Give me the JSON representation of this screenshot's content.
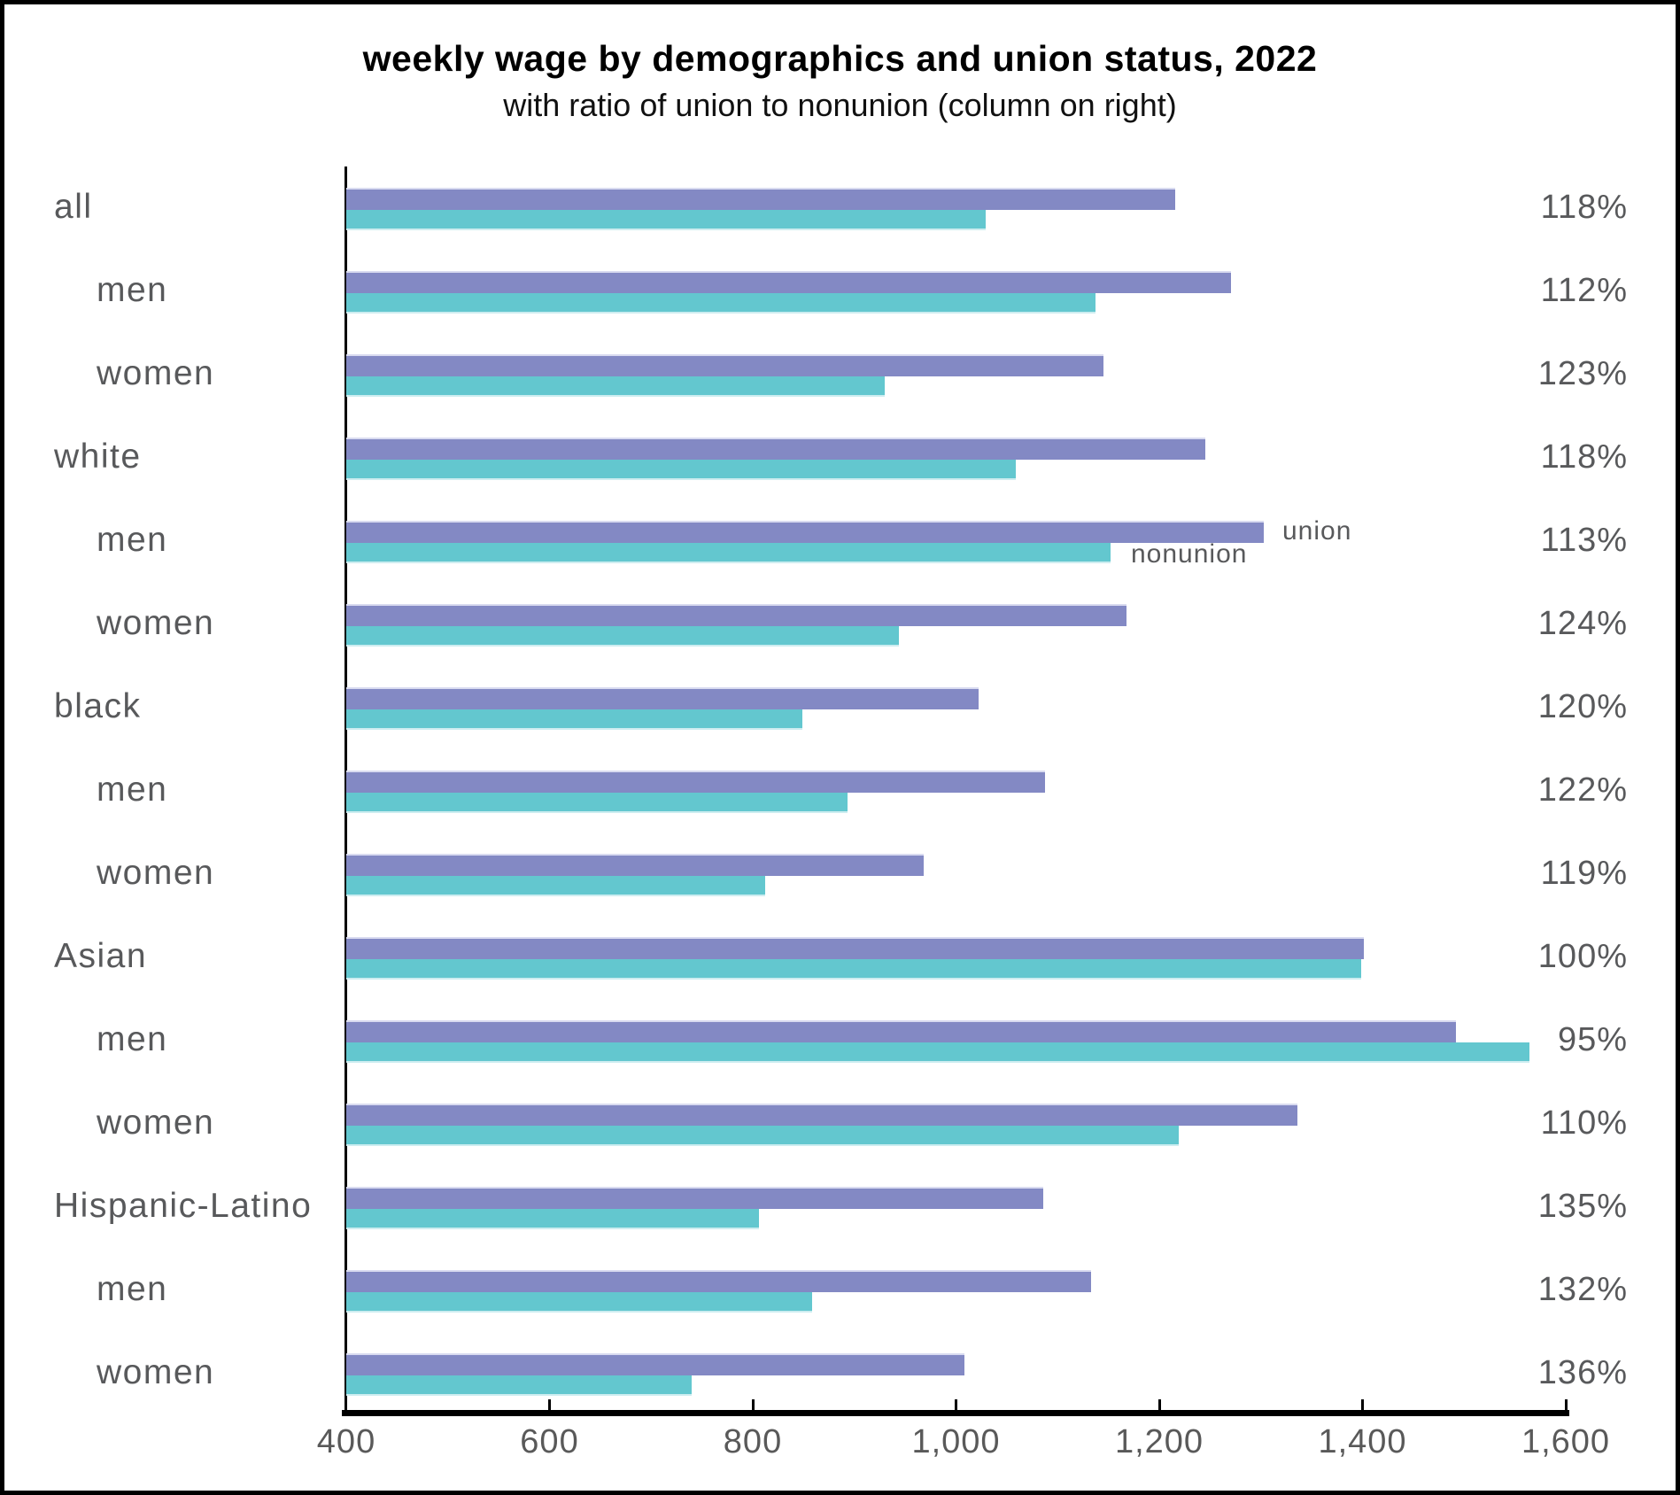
{
  "title": "weekly wage by demographics and union status, 2022",
  "subtitle": "with ratio of union to nonunion (column on right)",
  "legend": {
    "union_label": "union",
    "nonunion_label": "nonunion"
  },
  "colors": {
    "union": "#8389c4",
    "nonunion": "#63c7cf",
    "union_edge": "#d9dbf0",
    "nonunion_edge": "#cdedf0",
    "label_gray": "#58595b",
    "axis_black": "#000000"
  },
  "chart_data": {
    "type": "bar",
    "orientation": "horizontal",
    "title": "weekly wage by demographics and union status, 2022",
    "subtitle": "with ratio of union to nonunion (column on right)",
    "xlabel": "",
    "ylabel": "",
    "xlim": [
      400,
      1600
    ],
    "grid": false,
    "x_ticks": [
      {
        "value": 400,
        "label": "400"
      },
      {
        "value": 600,
        "label": "600"
      },
      {
        "value": 800,
        "label": "800"
      },
      {
        "value": 1000,
        "label": "1,000"
      },
      {
        "value": 1200,
        "label": "1,200"
      },
      {
        "value": 1400,
        "label": "1,400"
      },
      {
        "value": 1600,
        "label": "1,600"
      }
    ],
    "categories": [
      {
        "label": "all",
        "indent": false
      },
      {
        "label": "men",
        "indent": true
      },
      {
        "label": "women",
        "indent": true
      },
      {
        "label": "white",
        "indent": false
      },
      {
        "label": "men",
        "indent": true
      },
      {
        "label": "women",
        "indent": true
      },
      {
        "label": "black",
        "indent": false
      },
      {
        "label": "men",
        "indent": true
      },
      {
        "label": "women",
        "indent": true
      },
      {
        "label": "Asian",
        "indent": false
      },
      {
        "label": "men",
        "indent": true
      },
      {
        "label": "women",
        "indent": true
      },
      {
        "label": "Hispanic-Latino",
        "indent": false
      },
      {
        "label": "men",
        "indent": true
      },
      {
        "label": "women",
        "indent": true
      }
    ],
    "series": [
      {
        "name": "union",
        "values": [
          1216,
          1271,
          1145,
          1245,
          1303,
          1168,
          1022,
          1088,
          968,
          1401,
          1492,
          1336,
          1086,
          1133,
          1008
        ]
      },
      {
        "name": "nonunion",
        "values": [
          1029,
          1137,
          930,
          1059,
          1152,
          944,
          849,
          893,
          812,
          1399,
          1564,
          1219,
          806,
          858,
          740
        ]
      }
    ],
    "ratio_union_to_nonunion": [
      "118%",
      "112%",
      "123%",
      "118%",
      "113%",
      "124%",
      "120%",
      "122%",
      "119%",
      "100%",
      "95%",
      "110%",
      "135%",
      "132%",
      "136%"
    ],
    "legend_position": "inline-right-of-bars-row-5"
  }
}
